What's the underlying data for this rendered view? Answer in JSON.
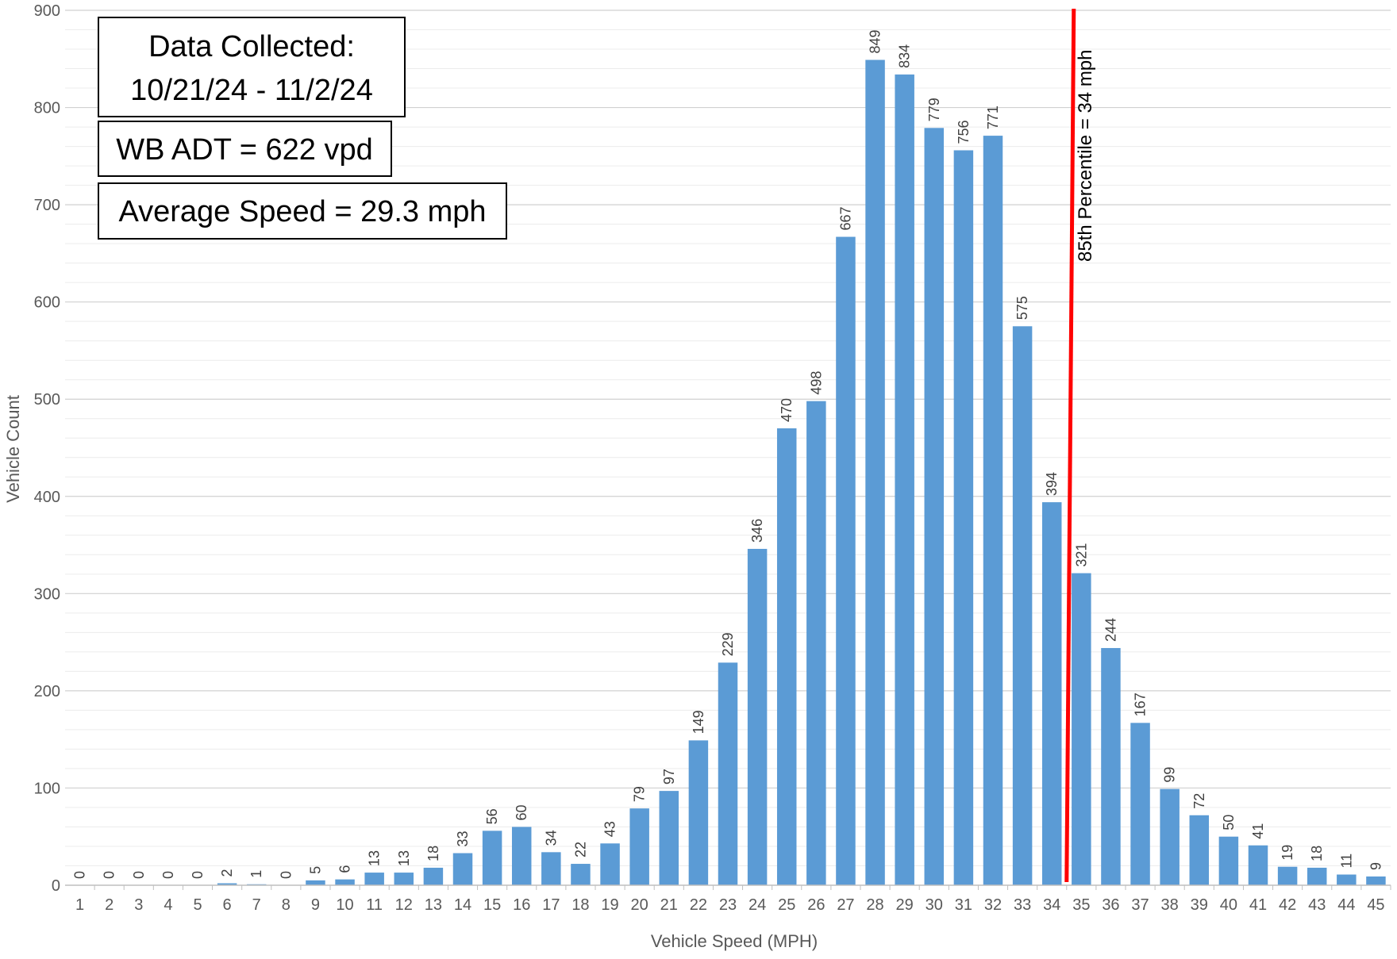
{
  "chart_data": {
    "type": "bar",
    "xlabel": "Vehicle Speed (MPH)",
    "ylabel": "Vehicle Count",
    "ylim": [
      0,
      900
    ],
    "yticks": [
      0,
      100,
      200,
      300,
      400,
      500,
      600,
      700,
      800,
      900
    ],
    "grid": true,
    "bar_color": "#5b9bd5",
    "categories": [
      "1",
      "2",
      "3",
      "4",
      "5",
      "6",
      "7",
      "8",
      "9",
      "10",
      "11",
      "12",
      "13",
      "14",
      "15",
      "16",
      "17",
      "18",
      "19",
      "20",
      "21",
      "22",
      "23",
      "24",
      "25",
      "26",
      "27",
      "28",
      "29",
      "30",
      "31",
      "32",
      "33",
      "34",
      "35",
      "36",
      "37",
      "38",
      "39",
      "40",
      "41",
      "42",
      "43",
      "44",
      "45"
    ],
    "values": [
      0,
      0,
      0,
      0,
      0,
      2,
      1,
      0,
      5,
      6,
      13,
      13,
      18,
      33,
      56,
      60,
      34,
      22,
      43,
      79,
      97,
      149,
      229,
      346,
      470,
      498,
      667,
      849,
      834,
      779,
      756,
      771,
      575,
      394,
      321,
      244,
      167,
      99,
      72,
      50,
      41,
      19,
      18,
      11,
      9
    ],
    "reference_line": {
      "x": 34.5,
      "label": "85th Percentile = 34 mph",
      "color": "#ff0000"
    },
    "annotations": [
      "Data Collected:",
      "10/21/24 - 11/2/24",
      "WB ADT = 622 vpd",
      "Average Speed = 29.3 mph"
    ]
  }
}
